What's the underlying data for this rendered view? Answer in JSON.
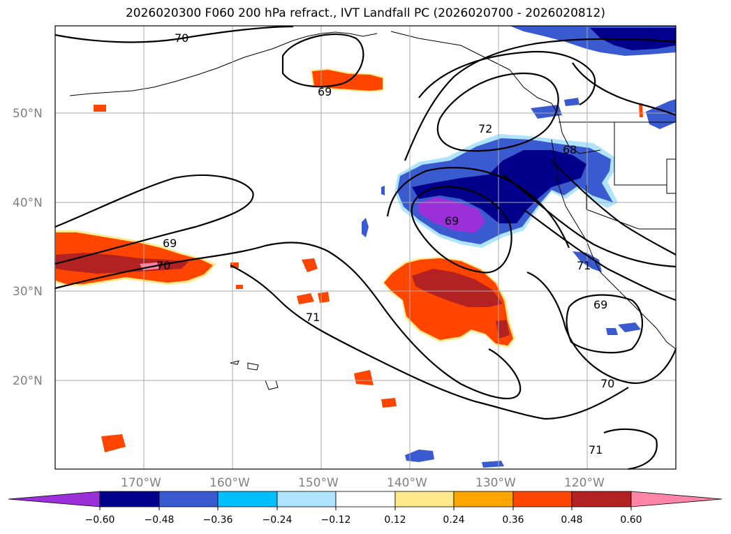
{
  "title": "2026020300 F060 200 hPa refract., IVT Landfall PC (2026020700 - 2026020812)",
  "lat_labels": [
    "50°N",
    "40°N",
    "30°N",
    "20°N"
  ],
  "lon_labels": [
    "170°W",
    "160°W",
    "150°W",
    "140°W",
    "130°W",
    "120°W"
  ],
  "contour_labels": [
    "70",
    "69",
    "72",
    "69",
    "69",
    "70",
    "71",
    "71",
    "69",
    "70",
    "71",
    "68"
  ],
  "colorbar": {
    "tick_labels": [
      "−0.60",
      "−0.48",
      "−0.36",
      "−0.24",
      "−0.12",
      "0.12",
      "0.24",
      "0.36",
      "0.48",
      "0.60"
    ],
    "colors": [
      "#9b30d9",
      "#00008b",
      "#3a5bd0",
      "#00bfff",
      "#aee4ff",
      "#ffffff",
      "#ffe98a",
      "#ffa500",
      "#ff4500",
      "#b22222",
      "#ff85a8"
    ]
  }
}
